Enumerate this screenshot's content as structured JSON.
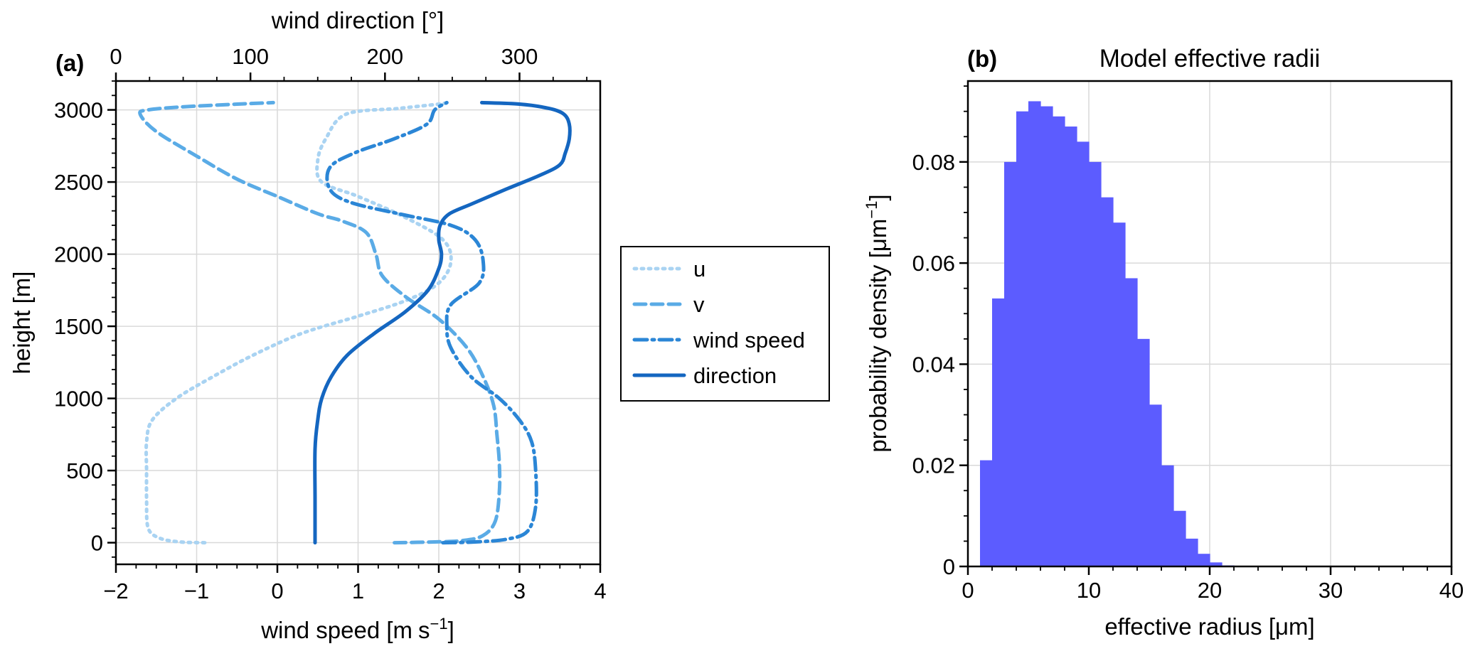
{
  "chart_data": [
    {
      "panel": "(a)",
      "type": "line",
      "title": "",
      "xlabel": "wind speed [m s−1]",
      "xlabel_parts": [
        "wind speed [m",
        "s",
        "−1",
        "]"
      ],
      "x2label": "wind direction [°]",
      "ylabel": "height [m]",
      "xlim": [
        -2,
        4
      ],
      "x2lim": [
        0,
        360
      ],
      "ylim": [
        -150,
        3200
      ],
      "xticks": [
        -2,
        -1,
        0,
        1,
        2,
        3,
        4
      ],
      "xtick_labels": [
        "−2",
        "−1",
        "0",
        "1",
        "2",
        "3",
        "4"
      ],
      "x2ticks": [
        0,
        100,
        200,
        300
      ],
      "x2tick_labels": [
        "0",
        "100",
        "200",
        "300"
      ],
      "yticks": [
        0,
        500,
        1000,
        1500,
        2000,
        2500,
        3000
      ],
      "ytick_labels": [
        "0",
        "500",
        "1000",
        "1500",
        "2000",
        "2500",
        "3000"
      ],
      "grid": true,
      "legend_position": "outside-right",
      "series": [
        {
          "name": "u",
          "color": "#a9d3f2",
          "dash": "3,7",
          "axis": "bottom",
          "points": [
            [
              -0.9,
              0
            ],
            [
              -1.2,
              5
            ],
            [
              -1.45,
              30
            ],
            [
              -1.6,
              100
            ],
            [
              -1.62,
              300
            ],
            [
              -1.62,
              500
            ],
            [
              -1.62,
              700
            ],
            [
              -1.55,
              850
            ],
            [
              -1.25,
              1000
            ],
            [
              -0.8,
              1150
            ],
            [
              -0.3,
              1300
            ],
            [
              0.3,
              1450
            ],
            [
              1.0,
              1570
            ],
            [
              1.6,
              1680
            ],
            [
              2.0,
              1800
            ],
            [
              2.15,
              1950
            ],
            [
              2.05,
              2100
            ],
            [
              1.6,
              2250
            ],
            [
              1.0,
              2400
            ],
            [
              0.55,
              2500
            ],
            [
              0.5,
              2650
            ],
            [
              0.6,
              2800
            ],
            [
              0.85,
              2970
            ],
            [
              1.5,
              3010
            ],
            [
              2.0,
              3040
            ],
            [
              2.1,
              3050
            ]
          ]
        },
        {
          "name": "v",
          "color": "#5aabe6",
          "dash": "16,8",
          "axis": "bottom",
          "points": [
            [
              1.45,
              0
            ],
            [
              1.95,
              5
            ],
            [
              2.3,
              15
            ],
            [
              2.55,
              50
            ],
            [
              2.7,
              150
            ],
            [
              2.75,
              350
            ],
            [
              2.75,
              550
            ],
            [
              2.72,
              750
            ],
            [
              2.68,
              950
            ],
            [
              2.55,
              1150
            ],
            [
              2.35,
              1350
            ],
            [
              2.0,
              1550
            ],
            [
              1.6,
              1700
            ],
            [
              1.3,
              1850
            ],
            [
              1.22,
              2000
            ],
            [
              1.1,
              2150
            ],
            [
              0.8,
              2230
            ],
            [
              0.5,
              2280
            ],
            [
              0.0,
              2400
            ],
            [
              -0.5,
              2520
            ],
            [
              -1.0,
              2680
            ],
            [
              -1.5,
              2850
            ],
            [
              -1.7,
              2970
            ],
            [
              -1.6,
              3000
            ],
            [
              -1.2,
              3020
            ],
            [
              -0.5,
              3040
            ],
            [
              -0.05,
              3050
            ]
          ]
        },
        {
          "name": "wind speed",
          "color": "#2b86d6",
          "dash": "18,7,3,7",
          "axis": "bottom",
          "points": [
            [
              2.05,
              0
            ],
            [
              2.45,
              5
            ],
            [
              2.85,
              25
            ],
            [
              3.1,
              80
            ],
            [
              3.2,
              250
            ],
            [
              3.2,
              500
            ],
            [
              3.15,
              700
            ],
            [
              3.0,
              850
            ],
            [
              2.75,
              1000
            ],
            [
              2.4,
              1150
            ],
            [
              2.15,
              1350
            ],
            [
              2.1,
              1500
            ],
            [
              2.15,
              1650
            ],
            [
              2.5,
              1800
            ],
            [
              2.55,
              1950
            ],
            [
              2.45,
              2100
            ],
            [
              2.15,
              2200
            ],
            [
              1.5,
              2280
            ],
            [
              0.9,
              2360
            ],
            [
              0.65,
              2450
            ],
            [
              0.65,
              2600
            ],
            [
              0.95,
              2700
            ],
            [
              1.45,
              2800
            ],
            [
              1.85,
              2900
            ],
            [
              1.95,
              3000
            ],
            [
              2.1,
              3050
            ]
          ]
        },
        {
          "name": "direction",
          "color": "#1466c0",
          "dash": "",
          "axis": "top",
          "points": [
            [
              148,
              0
            ],
            [
              148,
              300
            ],
            [
              148,
              650
            ],
            [
              150,
              850
            ],
            [
              153,
              1000
            ],
            [
              160,
              1150
            ],
            [
              172,
              1300
            ],
            [
              192,
              1450
            ],
            [
              215,
              1600
            ],
            [
              232,
              1750
            ],
            [
              240,
              1900
            ],
            [
              242,
              2000
            ],
            [
              240,
              2100
            ],
            [
              241,
              2200
            ],
            [
              248,
              2280
            ],
            [
              265,
              2350
            ],
            [
              290,
              2450
            ],
            [
              316,
              2550
            ],
            [
              330,
              2620
            ],
            [
              334,
              2700
            ],
            [
              337,
              2800
            ],
            [
              337,
              2900
            ],
            [
              333,
              2970
            ],
            [
              322,
              3010
            ],
            [
              300,
              3040
            ],
            [
              272,
              3050
            ]
          ]
        }
      ]
    },
    {
      "panel": "(b)",
      "type": "bar",
      "title": "Model effective radii",
      "xlabel": "effective radius [μm]",
      "ylabel": "probability density [μm−1]",
      "ylabel_parts": [
        "probability density [μm",
        "−1",
        "]"
      ],
      "xlim": [
        0,
        40
      ],
      "ylim": [
        0,
        0.096
      ],
      "xticks": [
        0,
        10,
        20,
        30,
        40
      ],
      "xtick_labels": [
        "0",
        "10",
        "20",
        "30",
        "40"
      ],
      "yticks": [
        0,
        0.02,
        0.04,
        0.06,
        0.08
      ],
      "ytick_labels": [
        "0",
        "0.02",
        "0.04",
        "0.06",
        "0.08"
      ],
      "grid": true,
      "color": "#5c5cff",
      "bin_width": 1,
      "bin_starts": [
        1,
        2,
        3,
        4,
        5,
        6,
        7,
        8,
        9,
        10,
        11,
        12,
        13,
        14,
        15,
        16,
        17,
        18,
        19,
        20,
        21
      ],
      "values": [
        0.021,
        0.053,
        0.08,
        0.09,
        0.092,
        0.091,
        0.089,
        0.087,
        0.084,
        0.08,
        0.073,
        0.068,
        0.057,
        0.045,
        0.032,
        0.02,
        0.011,
        0.0055,
        0.0025,
        0.0008,
        0.0002
      ]
    }
  ]
}
